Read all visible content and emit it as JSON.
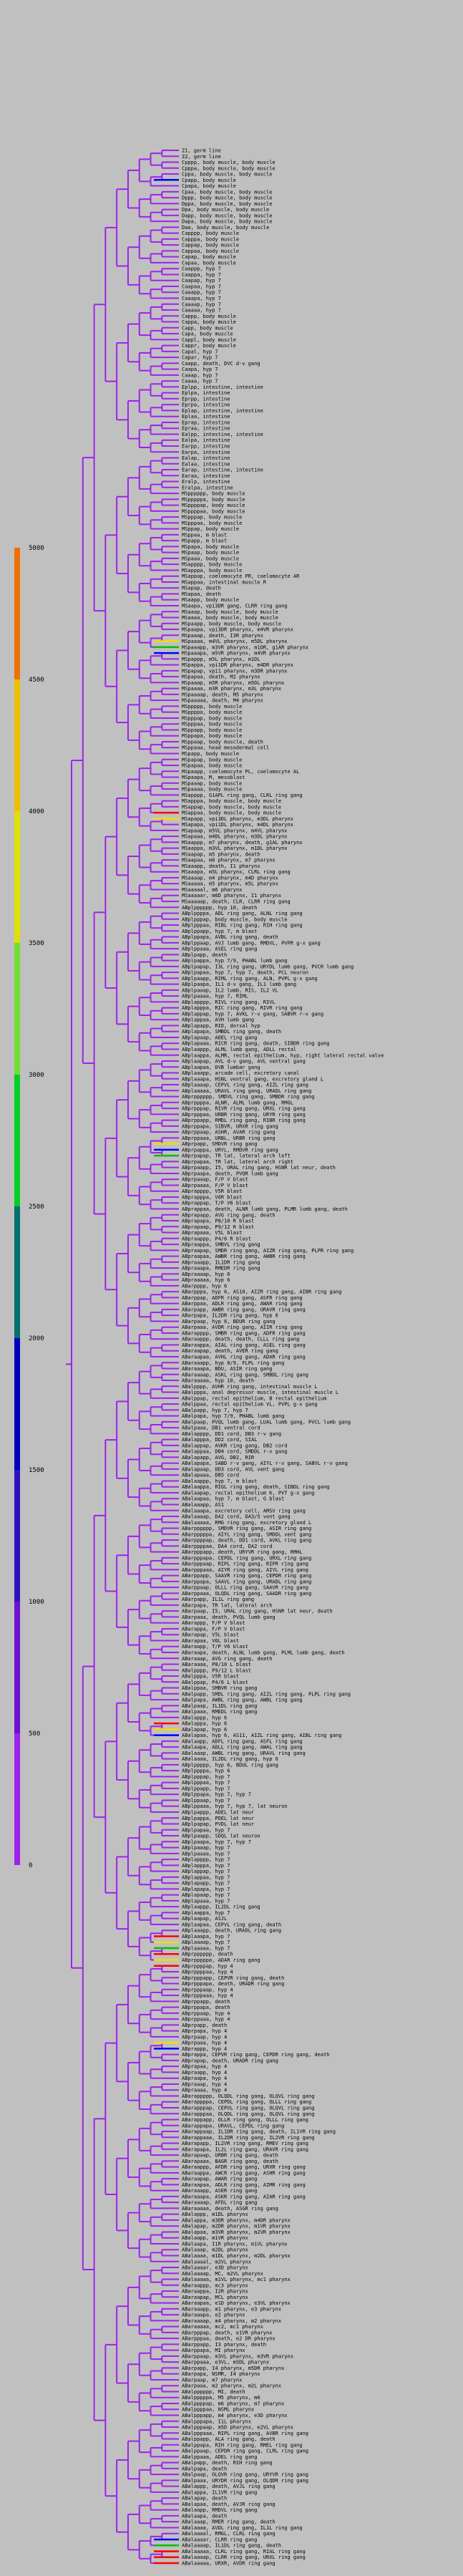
{
  "legend": {
    "tick_labels": [
      "0",
      "500",
      "1000",
      "1500",
      "2000",
      "2500",
      "3000",
      "3500",
      "4000",
      "4500",
      "5000"
    ],
    "bands": [
      {
        "value": 0,
        "color": "#a020f0"
      },
      {
        "value": 500,
        "color": "#7010d0"
      },
      {
        "value": 1000,
        "color": "#3010c0"
      },
      {
        "value": 1500,
        "color": "#0000c0"
      },
      {
        "value": 2000,
        "color": "#007070"
      },
      {
        "value": 2500,
        "color": "#00d020"
      },
      {
        "value": 3000,
        "color": "#70e030"
      },
      {
        "value": 3500,
        "color": "#e0e000"
      },
      {
        "value": 4000,
        "color": "#f0c000"
      },
      {
        "value": 4500,
        "color": "#f07000"
      },
      {
        "value": 5000,
        "color": "#f06000"
      }
    ]
  },
  "colors": {
    "branch": "#a020f0",
    "background": "#c0c0c0",
    "highlight_blue": "#0000ff",
    "highlight_red": "#ff0000",
    "highlight_yellow": "#f0e000",
    "highlight_green": "#00c000"
  },
  "leaves": [
    "Z1, germ line",
    "Z2, germ line",
    "Cpppp, body muscle, body muscle",
    "Cpppa, body muscle, body muscle",
    "Cppa, body muscle, body muscle",
    "Cpapp, body muscle",
    "Cpapa, body muscle",
    "Cpaa, body muscle, body muscle",
    "Dppp, body muscle, body muscle",
    "Dppa, body muscle, body muscle",
    "Dpa, body muscle, body muscle",
    "Dapp, body muscle, body muscle",
    "Dapa, body muscle, body muscle",
    "Daa, body muscle, body muscle",
    "Capppp, body muscle",
    "Capppa, body muscle",
    "Cappap, body muscle",
    "Cappaa, body muscle",
    "Capap, body muscle",
    "Capaa, body muscle",
    "Caappp, hyp 7",
    "Caappa, hyp 7",
    "Caapap, hyp 7",
    "Caapaa, hyp 7",
    "Caaapp, hyp 7",
    "Caaapa, hyp 7",
    "Caaaap, hyp 7",
    "Caaaaa, hyp 7",
    "Cappp, body muscle",
    "Cappa, body muscle",
    "Capp, body muscle",
    "Capa, body muscle",
    "Cappl, body muscle",
    "Cappr, body muscle",
    "Capal, hyp 7",
    "Capar, hyp 7",
    "Caapp, death, DVC d-v gang",
    "Caapa, hyp 7",
    "Caaap, hyp 7",
    "Caaaa, hyp 7",
    "Eplpp, intestine, intestine",
    "Eplpa, intestine",
    "Eprpp, intestine",
    "Eprpa, intestine",
    "Eplap, intestine, intestine",
    "Eplaa, intestine",
    "Eprap, intestine",
    "Epraa, intestine",
    "Ealpp, intestine, intestine",
    "Ealpa, intestine",
    "Earpp, intestine",
    "Earpa, intestine",
    "Ealap, intestine",
    "Ealaa, intestine",
    "Earap, intestine, intestine",
    "Earaa, intestine",
    "Eralp, intestine",
    "Eralpa, intestine",
    "MSpppppp, body muscle",
    "MSpppppa, body muscle",
    "MSppppap, body muscle",
    "MSppppaa, body muscle",
    "MSpppap, body muscle",
    "MSpppaa, body muscle",
    "MSppap, body muscle",
    "MSppaa, m blast",
    "MSpapp, m blast",
    "MSpapa, body muscle",
    "MSpaap, body muscle",
    "MSpaaa, body muscle",
    "MSapppp, body muscle",
    "MSapppa, body muscle",
    "MSappap, coelomocyte PR, coelomocyte AR",
    "MSappaa, intestinal muscle R",
    "MSapap, death",
    "MSapaa, death",
    "MSaapp, body muscle",
    "MSaapa, vpi3DR gang, CLRR ring gang",
    "MSaaap, body muscle, body muscle",
    "MSaaaa, body muscle, body muscle",
    "MSpaapp, body muscle, body muscle",
    "MSpaapa, vpi3DR pharynx, m4VR pharynx",
    "MSpaaap, death, I3R pharynx",
    "MSpaaaa, m4VL pharynx, m5DL pharynx",
    "MSpaaapp, m3VR pharynx, m1DR, g1AR pharynx",
    "MSpaaapa, m5VR pharynx, m4VR pharynx",
    "MSpappp, m5L pharynx, m1DL",
    "MSpappa, vpi1DR pharynx, m4DR pharynx",
    "MSpapap, vpi1 pharynx, m3DR pharynx",
    "MSpapaa, death, M2 pharynx",
    "MSpaaap, m5R pharynx, m5DL pharynx",
    "MSpaaaa, m3R pharynx, m3L pharynx",
    "MSpaaaap, death, M5 pharynx",
    "MSpaaaaa, death, M4 pharynx",
    "MSppppp, body muscle",
    "MSppppa, body muscle",
    "MSpppap, body muscle",
    "MSpppaa, body muscle",
    "MSppapp, body muscle",
    "MSppapa, body muscle",
    "MSppaap, body muscle, death",
    "MSppaaa, head mesodermal cell",
    "MSpapp, body muscle",
    "MSpapap, body muscle",
    "MSpapaa, body muscle",
    "MSpaapp, coelomocyte PL, coelomocyte AL",
    "MSpaapa, M, mesoblast",
    "MSpaaap, body muscle",
    "MSpaaaa, body muscle",
    "MSapppp, G1APL ring gang, CLRL ring gang",
    "MSapppa, body muscle, body muscle",
    "MSappap, body muscle, body muscle",
    "MSappaa, body muscle, body muscle",
    "MSapapp, vpi3DL pharynx, m3DL pharynx",
    "MSapapa, vpi1DL pharynx, m4DL pharynx",
    "MSapaap, m5VL pharynx, m4VL pharynx",
    "MSapaaa, m4DL pharynx, m3DL pharynx",
    "MSaappp, m7 pharynx, death, g1AL pharynx",
    "MSaappa, m3VL pharynx, m1DL pharynx",
    "MSaapap, m5 pharynx, death",
    "MSaapaa, m6 pharynx, m7 pharynx",
    "MSaaapp, death, I1 pharynx",
    "MSaaapa, m5L pharynx, CLRL ring gang",
    "MSaaaap, m4 pharynx, m4D pharynx",
    "MSaaaaa, m5 pharynx, m5L pharynx",
    "MSaaaaal, m6 pharynx",
    "MSaaaaar, m6D pharynx, I1 pharynx",
    "MSaaaaap, death, CLR, CLRR ring gang",
    "ABplpppppp, hyp 10, death",
    "ABplppppa, ADL ring gang, ALNL ring gang",
    "ABplpppap, body muscle, body muscle",
    "ABplpppaa, RIBL ring gang, RIH ring gang",
    "ABplppapp, hyp 7, m blast",
    "ABplppapa, AVBL ring gang, death",
    "ABplppaap, AVJ lumb gang, RMDVL, PVPR g-x gang",
    "ABplppaaa, ASEL ring gang",
    "ABplpapp, death",
    "ABplpappa, hyp 7/9, PHABL lumb gang",
    "ABplpapap, I3L ring gang, URYDL lumb gang, PVCR lumb gang",
    "ABplpapaa, hyp 7, hyp 7, death, PCL neuron",
    "ABplpaapp, RIML ring gang, ALN, PVPL g-x gang",
    "ABplpaapa, IL1 d-v gang, IL1 lumb gang",
    "ABplpaaap, IL2 lumb, RIS, IL2 VL",
    "ABplpaaaa, hyp 7, RIML",
    "ABplapppp, RIVL ring gang, RIVL",
    "ABplapppa, RIC ring gang, RIVR ring gang",
    "ABplappap, hyp 7, AVKL r-v gang, SABVR r-v gang",
    "ABplappaa, AVH lumb gang",
    "ABplapapp, RID, dorsal hyp",
    "ABplapapa, SMBDL ring gang, death",
    "ABplapaap, ADEL ring gang",
    "ABplapaaa, RICR ring gang, death, SIBDR ring gang",
    "ABplaappp, ALML lumb gang, ADLL rectal",
    "ABplaappa, ALMR, rectal epithelium, hyp, right lateral rectal valve",
    "ABplaapap, AVL d-v gang, AVL ventral gang",
    "ABplaapaa, DVB lumbar gang",
    "ABplaaapp, arcade cell, excretory canal",
    "ABplaaapa, HSNL ventral gang, excretory gland L",
    "ABplaaaap, CEPVL ring gang, AIZL ring gang",
    "ABplaaaaa, URAVL ring gang, URADL ring gang",
    "ABprpppppp, SMDVL ring gang, SMBDR ring gang",
    "ABprppppa, ALNR, ALML lumb gang, RMGL",
    "ABprpppap, RIVR ring gang, URXL ring gang",
    "ABprpppaa, URBR ring gang, URYR ring gang",
    "ABprppapp, RMDL ring gang, RIBR ring gang",
    "ABprppapa, SIBVR, URXR ring gang",
    "ABprppaap, ASHR, AVAR ring gang",
    "ABprppaaa, URBL, URBR ring gang",
    "ABprpapp, SMDVR ring gang",
    "ABprpappa, URYL, RMDVR ring gang",
    "ABprpapap, TR lat, lateral arch left",
    "ABprpapaa, TR lat, lateral arch right",
    "ABprpaapp, I5, URAL ring gang, HSNR lat neur, death",
    "ABprpaapa, death, PVQR lumb gang",
    "ABprpaaap, F/P V blast",
    "ABprpaaaa, F/P V blast",
    "ABprapppp, V5R blast",
    "ABprapppa, V6R blast",
    "ABprappap, T/P V6 blast",
    "ABprappaa, death, ALNR lumb gang, PLMR lumb gang, death",
    "ABprapapp, AVG ring gang, death",
    "ABprapapa, P8/10 R blast",
    "ABprapaap, P9/12 R blast",
    "ABprapaaa, V5L blast",
    "ABpraappp, P4/6 R blast",
    "ABpraappa, SMBVL ring gang",
    "ABpraapap, SMDR ring gang, AIZR ring gang, PLPR ring gang",
    "ABpraapaa, AWBR ring gang, AWBR ring gang",
    "ABpraaapp, IL1DR ring gang",
    "ABpraaapa, RMEDR ring gang",
    "ABpraaaap, hyp 6",
    "ABpraaaaa, hyp 6",
    "ABarpppp, hyp 6",
    "ABarpppa, hyp 6, AS10, AIZR ring gang, AIBR ring gang",
    "ABarppap, ADFR ring gang, ASFR ring gang",
    "ABarppaa, ADLR ring gang, AWAR ring gang",
    "ABarpapp, AWBR ring gang, URAVR ring gang",
    "ABarpapa, IL2DR ring gang, hyp 6",
    "ABarpaap, hyp 6, BDUR ring gang",
    "ABarpaaa, AVDR ring gang, AIIR ring gang",
    "ABarapppp, SMBR ring gang, ADFR ring gang",
    "ABaraappp, death, death, CLLL ring gang",
    "ABaraappa, AIAL ring gang, ASEL ring gang",
    "ABaraapap, death, AVER ring gang",
    "ABaraapaa, AVHL ring gang, ADAR ring gang",
    "ABaraaapp, hyp 8/9, FLPL ring gang",
    "ABaraaapa, BDU, ASIR ring gang",
    "ABaraaaap, ASKL ring gang, SMBDL ring gang",
    "ABaraaaaa, hyp 10, death",
    "ABalpppp, AVHR ring gang, intestinal muscle L",
    "ABalpppa, anal depressor muscle, intestinal muscle L",
    "ABalppap, rectal epithelium, B rectal epithelium",
    "ABalppaa, rectal epithelium VL, PVPL g-x gang",
    "ABalpapp, hyp 7, hyp 7",
    "ABalpapa, hyp 7/9, PHABL lumb gang",
    "ABalpaap, PVQL lumb gang, LUAL lumb gang, PVCL lumb gang",
    "ABalpaaa, DB1 ventral cord",
    "ABalapppp, DD1 cord, DB3 r-v gang",
    "ABalapppa, DD2 cord, SIAL",
    "ABalappap, AVKR ring gang, DB2 cord",
    "ABalappaa, DB4 cord, SMDDL r-v gang",
    "ABalapapp, AVG, DB2, RIR",
    "ABalapapa, SABD r-v gang, AIYL r-v gang, SABVL r-v gang",
    "ABalapaap, DD3 cord, AVL vent gang",
    "ABalapaaa, DB5 cord",
    "ABalaappp, hyp 7, m blast",
    "ABalaappa, RIGL ring gang, death, SIBDL ring gang",
    "ABalaapap, rectal epithelium K, PVT g-x gang",
    "ABalaapaa, hyp 7, m blast, G blast",
    "ABalaaapp, AS1",
    "ABalaaapa, excretory cell, AMSV ring gang",
    "ABalaaaap, DA2 cord, DA3/5 vent gang",
    "ABalaaaaa, RMG ring gang, excretory gland L",
    "ABarpppppp, SMDVR ring gang, ASIR ring gang",
    "ABarpppppa, AIYL ring gang, SMDDL vent gang",
    "ABarppppap, death, DD1 cord, AVKL ring gang",
    "ABarppppaa, DA4 cord, DA2 cord",
    "ABarpppapp, death, URYVR ring gang, RMHL",
    "ABarpppapa, CEPDL ring gang, URXL ring gang",
    "ABarpppaap, RIPL ring gang, RIPR ring gang",
    "ABarpppaaa, AIYR ring gang, AIYL ring gang",
    "ABarppapp, SAAVR ring gang, CEPDR ring gang",
    "ABarppapa, SAAVL ring gang, URADL ring gang",
    "ABarppaap, OLLL ring gang, SAAVR ring gang",
    "ABarppaaa, OLQDL ring gang, SAADR ring gang",
    "ABarpapp, IL1L ring gang",
    "ABarpapa, TR lat, lateral arch",
    "ABarpaap, I5, URAL ring gang, HSNR lat neur, death",
    "ABarpaaa, death, PVQL lumb gang",
    "ABarappp, F/P V blast",
    "ABarappa, F/P V blast",
    "ABarapap, V5L blast",
    "ABarapaa, V6L blast",
    "ABaraapp, T/P V6 blast",
    "ABaraapa, death, ALNL lumb gang, PLML lumb gang, death",
    "ABaraaap, AVG ring gang, death",
    "ABaraaaa, P8/10 L blast",
    "ABalpppp, P9/12 L blast",
    "ABalpppa, V5R blast",
    "ABalppap, P4/6 L blast",
    "ABalppaa, SMBVR ring gang",
    "ABalpapp, SMDL ring gang, AIZL ring gang, PLPL ring gang",
    "ABalpapa, AWBL ring gang, AWBL ring gang",
    "ABalpaap, IL1DL ring gang",
    "ABalpaaa, RMEDL ring gang",
    "ABalappp, hyp 6",
    "ABalappa, hyp 6",
    "ABalapap, hyp 6",
    "ABalapaa, hyp 6, AS11, AIZL ring gang, AIBL ring gang",
    "ABalaapp, ADFL ring gang, ASFL ring gang",
    "ABalaapa, ADLL ring gang, AWAL ring gang",
    "ABalaaap, AWBL ring gang, URAVL ring gang",
    "ABalaaaa, IL2DL ring gang, hyp 6",
    "ABplppppp, hyp 6, BDUL ring gang",
    "ABplppppa, hyp 6",
    "ABplpppap, hyp 7",
    "ABplpppaa, hyp 7",
    "ABplppapp, hyp 7",
    "ABplppapa, hyp 7, hyp 7",
    "ABplppaap, hyp 7",
    "ABplppaaa, hyp 7, hyp 7, lat neuron",
    "ABplpappp, ADEL lat neur",
    "ABplpappa, PDEL lat neur",
    "ABplpapap, PVDL lat neur",
    "ABplpapaa, hyp 7",
    "ABplpaapp, SDQL lat neuron",
    "ABplpaapa, hyp 7, hyp 7",
    "ABplpaaap, hyp 7",
    "ABplpaaaa, hyp 7",
    "ABplapppp, hyp 7",
    "ABplapppa, hyp 7",
    "ABplappap, hyp 7",
    "ABplappaa, hyp 7",
    "ABplapapp, hyp 7",
    "ABplapapa, hyp 7",
    "ABplapaap, hyp 7",
    "ABplapaaa, hyp 7",
    "ABplaappp, IL2DL ring gang",
    "ABplaappa, hyp 7",
    "ABplaapap, ASJL",
    "ABplaapaa, CEPVL ring gang, death",
    "ABplaaapp, death, URADL ring gang",
    "ABplaaapa, hyp 7",
    "ABplaaaap, hyp 7",
    "ABplaaaaa, hyp 7",
    "ABprpppppp, death",
    "ABprpppppa, ADAR ring gang",
    "ABprppppap, hyp 4",
    "ABprppppaa, hyp 4",
    "ABprpppapp, CEPVR ring gang, death",
    "ABprpppapa, death, URADR ring gang",
    "ABprpppaap, hyp 4",
    "ABprpppaaa, hyp 4",
    "ABprppapp, death",
    "ABprppapa, death",
    "ABprppaap, hyp 4",
    "ABprppaaa, hyp 4",
    "ABprpapp, death",
    "ABprpapa, hyp 4",
    "ABprpaap, hyp 4",
    "ABprpaaa, hyp 4",
    "ABprappp, hyp 4",
    "ABprappa, CEPVR ring gang, CEPDR ring gang, death",
    "ABprapap, death, URADR ring gang",
    "ABprapaa, hyp 4",
    "ABpraapp, hyp 4",
    "ABpraapa, hyp 4",
    "ABpraaap, hyp 4",
    "ABpraaaa, hyp 4",
    "ABarappppp, OLQDL ring gang, OLQVL ring gang",
    "ABarappppa, CEPDL ring gang, OLLL ring gang",
    "ABarapppap, CEPVL ring gang, OLQVL ring gang",
    "ABarapppaa, OLQDL ring gang, OLQVL ring gang",
    "ABarappapp, OLLR ring gang, OLLL ring gang",
    "ABarappapa, URAVL, CEPDL ring gang",
    "ABarappaap, IL1DR ring gang, death, IL1VR ring gang",
    "ABarappaaa, IL2DR ring gang, IL2VR ring gang",
    "ABarapapp, IL2VR ring gang, RMEV ring gang",
    "ABarapapa, IL2L ring gang, URAVR ring gang",
    "ABarapaap, URBR ring gang, death",
    "ABarapaaa, BAGR ring gang, death",
    "ABaraappp, AFDR ring gang, URXR ring gang",
    "ABaraappa, AWCR ring gang, ASHR ring gang",
    "ABaraapap, AWAR ring gang",
    "ABaraapaa, ADLR ring gang, AIMR ring gang",
    "ABaraaapp, ASER ring gang",
    "ABaraaapa, ASKR ring gang, AIAR ring gang",
    "ABaraaaap, AFDL ring gang",
    "ABaraaaaa, death, ASGR ring gang",
    "ABalappp, m1DL pharynx",
    "ABalappa, m3DR pharynx, m4DR pharynx",
    "ABalapap, m2DR pharynx, m1VR pharynx",
    "ABalapaa, m3VR pharynx, m2VR pharynx",
    "ABalaapp, m1VR pharynx",
    "ABalaapa, I1R pharynx, m1VL pharynx",
    "ABalaaap, m2DL pharynx",
    "ABalaaaa, m1DL pharynx, m2DL pharynx",
    "ABalaaaal, m2VL pharynx",
    "ABalaaaar, e3D pharynx",
    "ABalaaaap, MC, m2VL pharynx",
    "ABalaaaaa, m1VL pharynx, mc1 pharynx",
    "ABaraappp, mc3 pharynx",
    "ABaraappa, I2R pharynx",
    "ABaraapap, MCL pharynx",
    "ABaraapaa, e1D pharynx, e3VL pharynx",
    "ABaraaapp, m1 pharynx, e3 pharynx",
    "ABaraaapa, e2 pharynx",
    "ABaraaaap, m4 pharynx, m2 pharynx",
    "ABaraaaaa, mc2, mc1 pharynx",
    "ABarpppap, death, e1VR pharynx",
    "ABarpppaa, death, e2 DR pharynx",
    "ABarppapp, I3 pharynx, death",
    "ABarppapa, MI pharynx",
    "ABarppaap, m3VL pharynx, m3VR pharynx",
    "ABarppaaa, e3VL, m5DL pharynx",
    "ABarpapp, I4 pharynx, m5DR pharynx",
    "ABarpapa, NSMR, I4 pharynx",
    "ABarpaap, m7 pharynx",
    "ABarpaaa, m2 pharynx, m2L pharynx",
    "ABalpppppp, MI, death",
    "ABalpppppa, M5 pharynx, m6",
    "ABalppppap, m6 pharynx, m7 pharynx",
    "ABalppppaa, NSML pharynx",
    "ABalpppapp, m4 pharynx, e3D pharynx",
    "ABalpppapa, I1L pharynx",
    "ABalpppaap, m5D pharynx, e2VL pharynx",
    "ABalpppaaa, RIPL ring gang, AVBR ring gang",
    "ABalppapp, ALA ring gang, death",
    "ABalppapa, RIH ring gang, RMEL ring gang",
    "ABalppaap, CEPDR ring gang, CLRL ring gang",
    "ABalppaaa, ADEL ring gang",
    "ABalpapp, death, RIH ring gang",
    "ABalpapa, death",
    "ABalpaap, OLQVR ring gang, URYVR ring gang",
    "ABalpaaa, URYDR ring gang, OLQDR ring gang",
    "ABalappp, death, AVJL ring gang",
    "ABalappa, IL1VR ring gang",
    "ABalapap, death",
    "ABalapaa, death, AVJR ring gang",
    "ABalaapp, RMDVL ring gang",
    "ABalaapa, death",
    "ABalaaap, RMER ring gang, death",
    "ABalaaaa, AVDL ring gang, IL1L ring gang",
    "ABalaaaal, RMGL, CLRL ring gang",
    "ABalaaaar, CLRR ring gang",
    "ABalaaaap, IL1DL ring gang, death",
    "ABalaaaaa, CLRL ring gang, RIAL ring gang",
    "ABalaaaap, CLRR ring gang, URXL ring gang",
    "ABalaaaaa, URXR, AVDR ring gang"
  ]
}
